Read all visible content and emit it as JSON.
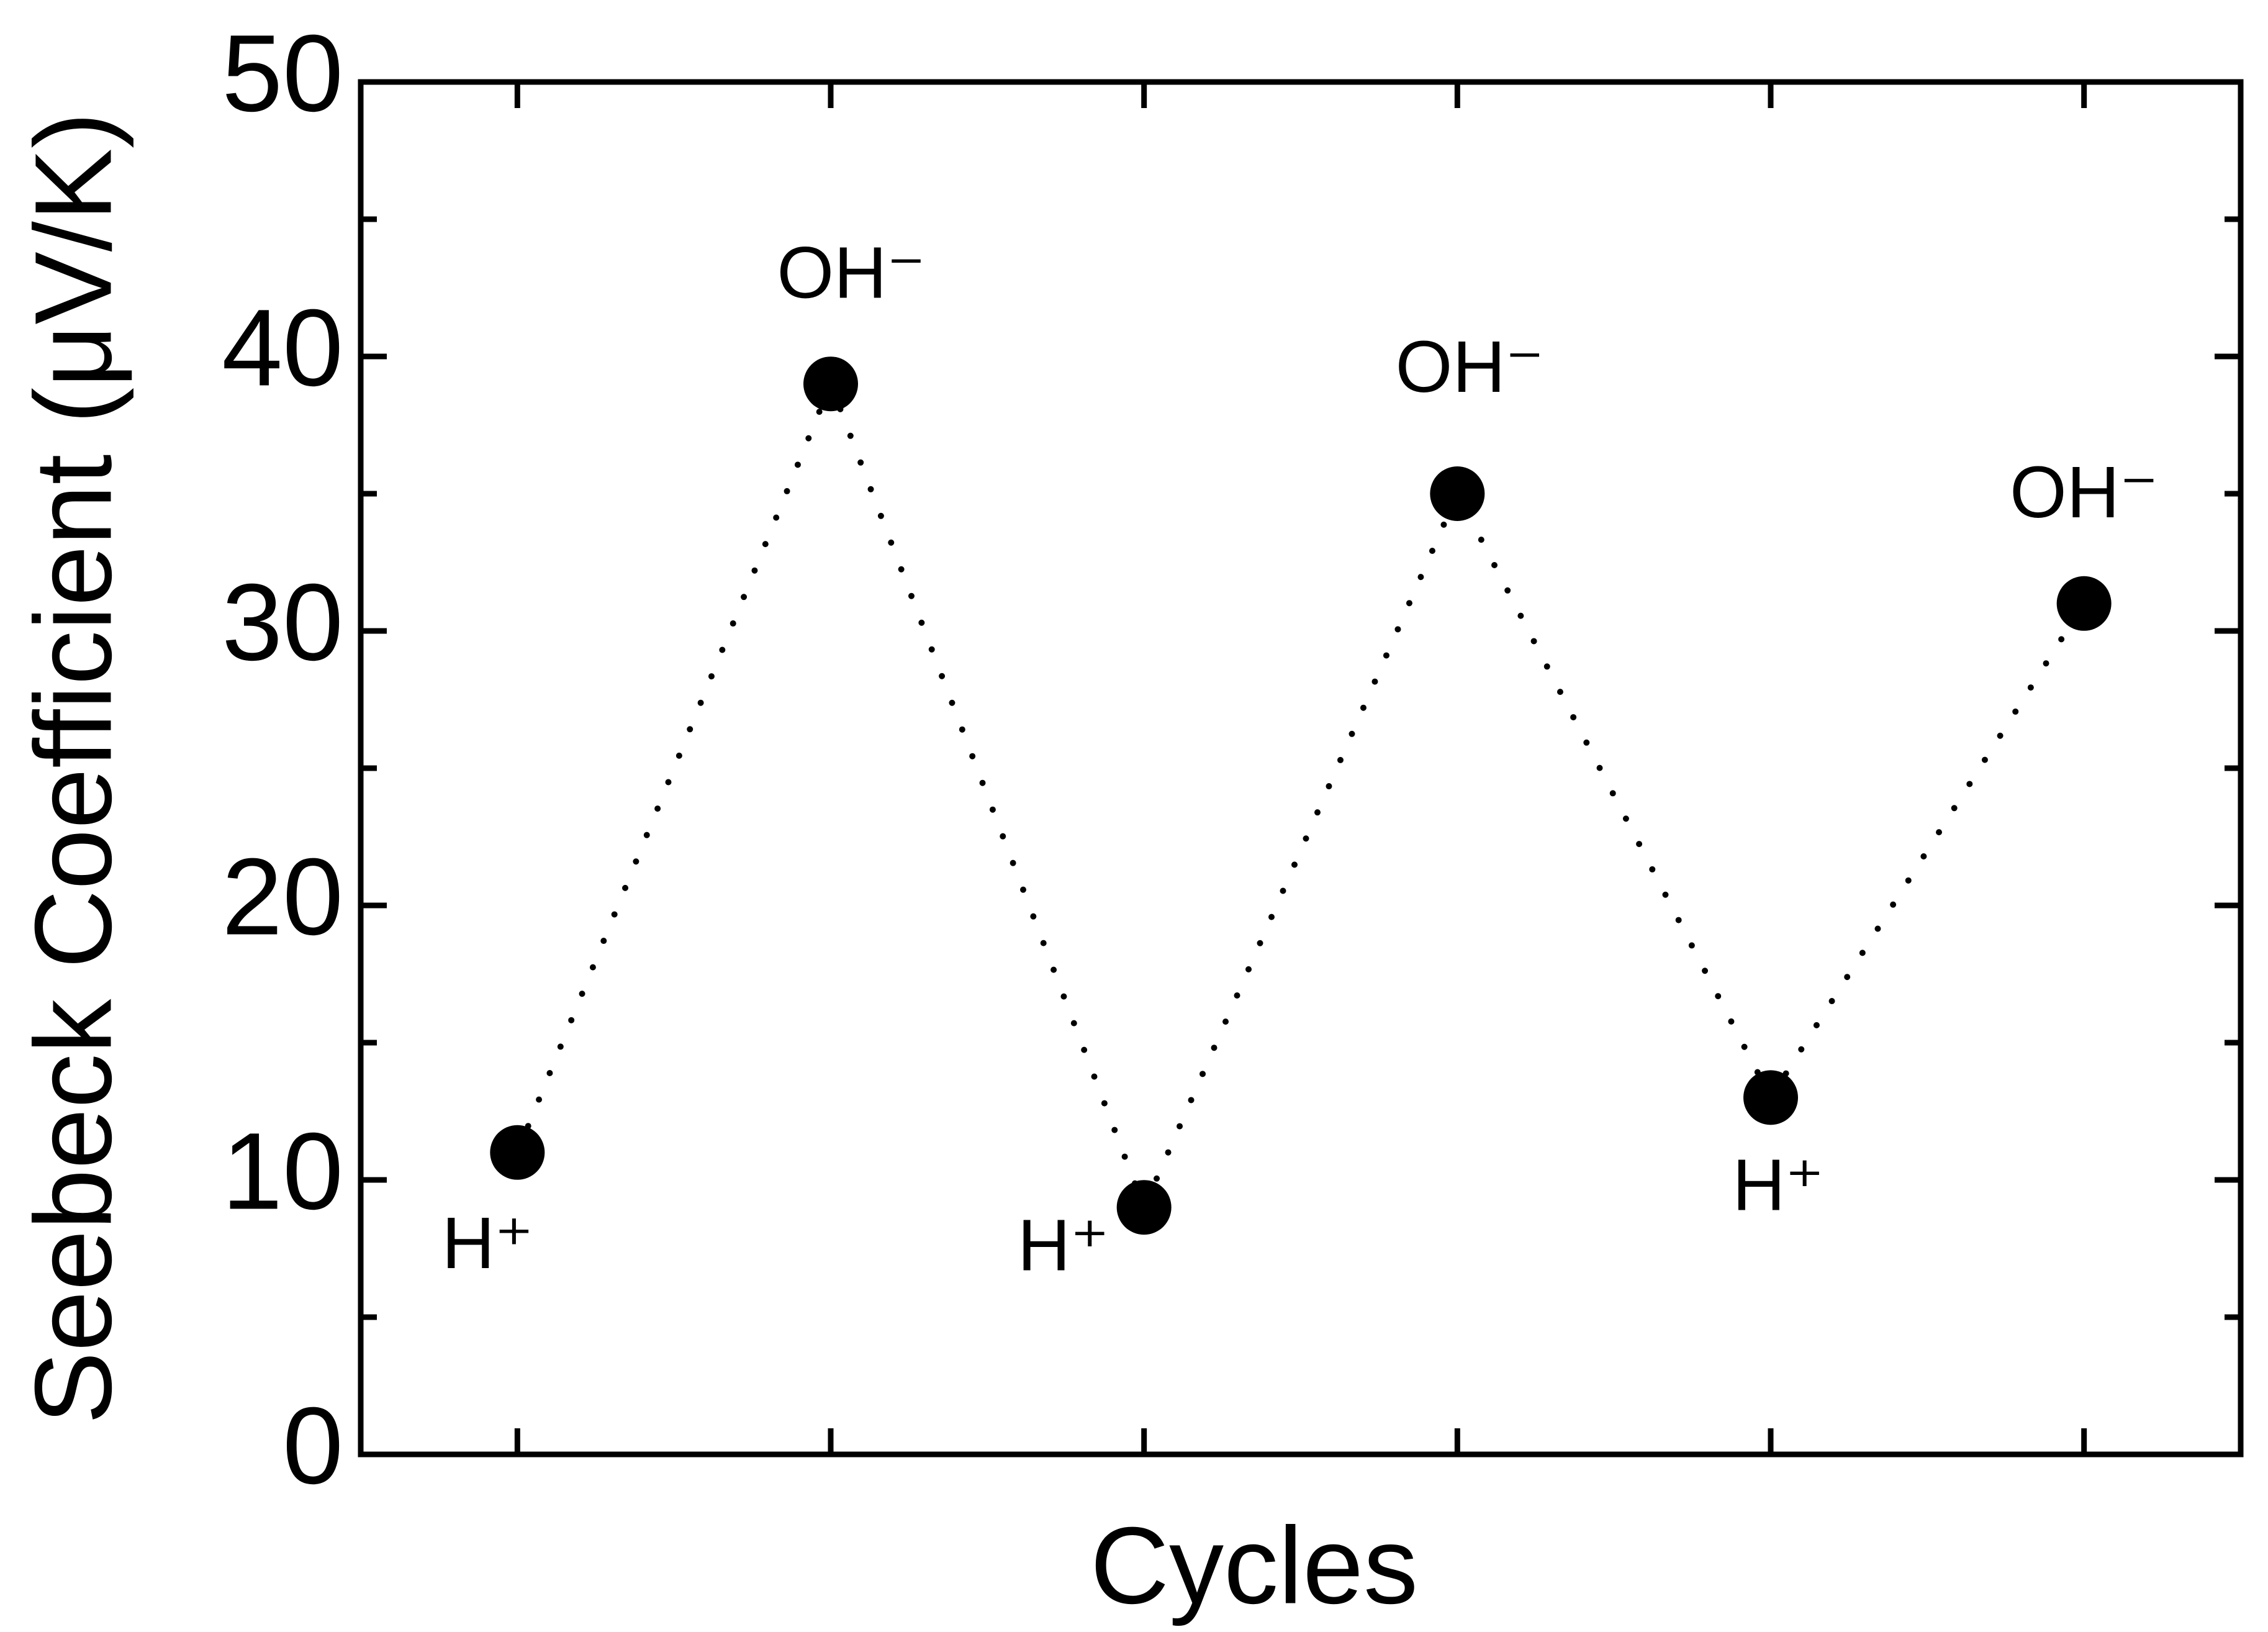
{
  "chart_data": {
    "type": "line",
    "x_title": "Cycles",
    "y_title": "Seebeck Coefficient (μV/K)",
    "categories": [
      null,
      null,
      null,
      null,
      null,
      null
    ],
    "values": [
      11,
      39,
      9,
      35,
      13,
      31
    ],
    "point_labels": [
      "H⁺",
      "OH⁻",
      "H⁺",
      "OH⁻",
      "H⁺",
      "OH⁻"
    ],
    "color": "#000000",
    "line_style": "dotted",
    "ylim": [
      0,
      50
    ],
    "yticks": [
      0,
      10,
      20,
      30,
      40,
      50
    ],
    "yminor": [
      5,
      15,
      25,
      35,
      45
    ],
    "grid": false
  }
}
